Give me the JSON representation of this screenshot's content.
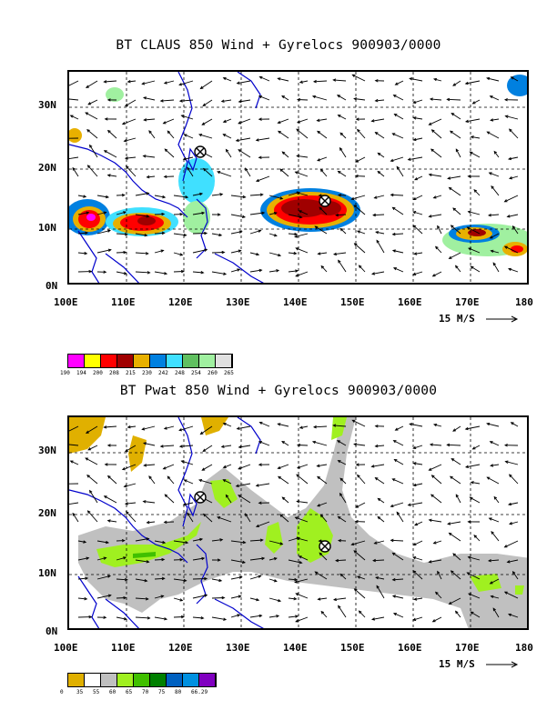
{
  "panels": [
    {
      "id": "claus",
      "title": "BT CLAUS 850 Wind + Gyrelocs 900903/0000",
      "lat_labels": [
        "30N",
        "20N",
        "10N",
        "0N"
      ],
      "lon_labels": [
        "100E",
        "110E",
        "120E",
        "130E",
        "140E",
        "150E",
        "160E",
        "170E",
        "180"
      ],
      "ref_vector_label": "15 M/S",
      "legend": {
        "colors": [
          "#ff00ff",
          "#ffff00",
          "#ff0000",
          "#a00000",
          "#e8b000",
          "#0080e0",
          "#40e0ff",
          "#60c060",
          "#a0f0a0",
          "#e0e0e0"
        ],
        "labels": [
          "190",
          "194",
          "200",
          "208",
          "215",
          "230",
          "242",
          "248",
          "254",
          "260",
          "265"
        ]
      },
      "gyrelocs": [
        {
          "lon": 122.8,
          "lat": 22.8
        },
        {
          "lon": 144.5,
          "lat": 14.8
        }
      ]
    },
    {
      "id": "pwat",
      "title": "BT Pwat 850 Wind + Gyrelocs 900903/0000",
      "lat_labels": [
        "30N",
        "20N",
        "10N",
        "0N"
      ],
      "lon_labels": [
        "100E",
        "110E",
        "120E",
        "130E",
        "140E",
        "150E",
        "160E",
        "170E",
        "180"
      ],
      "ref_vector_label": "15 M/S",
      "legend": {
        "colors": [
          "#e0b000",
          "#ffffff",
          "#c0c0c0",
          "#a0f020",
          "#40c000",
          "#008000",
          "#0060c0",
          "#0090e0",
          "#8000c0"
        ],
        "labels": [
          "0",
          "35",
          "55",
          "60",
          "65",
          "70",
          "75",
          "80",
          "66.29"
        ]
      },
      "gyrelocs": [
        {
          "lon": 122.8,
          "lat": 22.8
        },
        {
          "lon": 144.5,
          "lat": 14.8
        }
      ]
    }
  ]
}
